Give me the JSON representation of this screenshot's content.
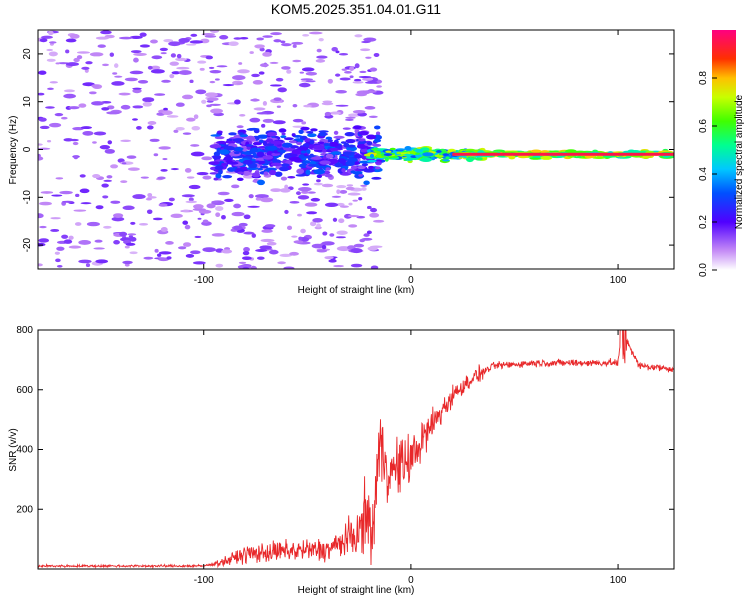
{
  "title": "KOM5.2025.351.04.01.G11",
  "chart_data": [
    {
      "type": "heatmap",
      "xlabel": "Height of straight line (km)",
      "ylabel": "Frequency (Hz)",
      "xlim": [
        -180,
        127
      ],
      "ylim": [
        -25,
        25
      ],
      "xticks": [
        -100,
        0,
        100
      ],
      "yticks": [
        -20,
        -10,
        0,
        10,
        20
      ],
      "colorbar": {
        "label": "Normalized spectral amplitude",
        "range": [
          0,
          1
        ],
        "ticks": [
          "0.0",
          "0.2",
          "0.4",
          "0.6",
          "0.8"
        ]
      },
      "description_points": [
        {
          "height_km": -160,
          "freq_hz": 5,
          "amp": 0.15
        },
        {
          "height_km": -90,
          "freq_hz": -2,
          "amp": 0.3
        },
        {
          "height_km": -70,
          "freq_hz": 0,
          "amp": 0.35
        },
        {
          "height_km": -30,
          "freq_hz": -1,
          "amp": 0.3
        },
        {
          "height_km": 0,
          "freq_hz": -1,
          "amp": 0.6
        },
        {
          "height_km": 40,
          "freq_hz": -1,
          "amp": 0.9
        },
        {
          "height_km": 100,
          "freq_hz": -1,
          "amp": 0.95
        }
      ],
      "line_trace": {
        "freq_hz": -1,
        "from_km": 20,
        "to_km": 127,
        "amp": 0.95
      }
    },
    {
      "type": "line",
      "xlabel": "Height of straight line (km)",
      "ylabel": "SNR (v/v)",
      "xlim": [
        -180,
        127
      ],
      "ylim": [
        0,
        800
      ],
      "xticks": [
        -100,
        0,
        100
      ],
      "yticks": [
        200,
        400,
        600,
        800
      ],
      "series": [
        {
          "name": "SNR",
          "color": "#e8282a",
          "x": [
            -180,
            -100,
            -90,
            -80,
            -60,
            -40,
            -25,
            -21,
            -19,
            -15,
            -10,
            0,
            10,
            20,
            30,
            40,
            60,
            80,
            100,
            102,
            110,
            127
          ],
          "y": [
            10,
            10,
            25,
            50,
            60,
            65,
            120,
            200,
            90,
            420,
            320,
            370,
            480,
            580,
            640,
            680,
            690,
            690,
            690,
            800,
            680,
            670
          ]
        }
      ]
    }
  ]
}
